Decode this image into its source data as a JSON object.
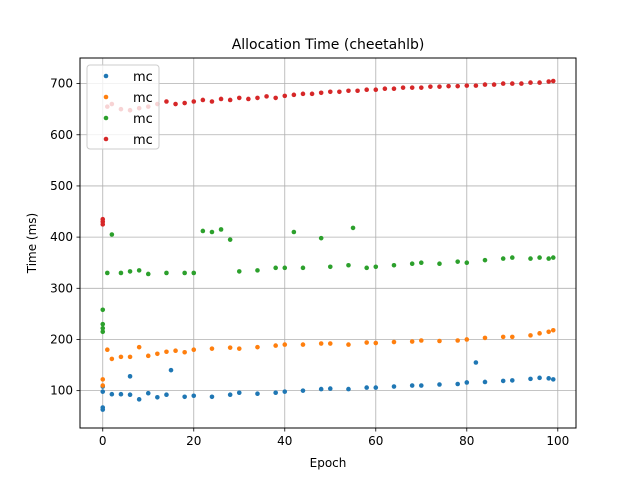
{
  "chart_data": {
    "type": "scatter",
    "title": "Allocation Time (cheetahlb)",
    "xlabel": "Epoch",
    "ylabel": "Time (ms)",
    "xlim": [
      -5,
      104
    ],
    "ylim": [
      27,
      750
    ],
    "xticks": [
      0,
      20,
      40,
      60,
      80,
      100
    ],
    "yticks": [
      100,
      200,
      300,
      400,
      500,
      600,
      700
    ],
    "grid": true,
    "legend_position": "top-left",
    "series": [
      {
        "name": "mc",
        "color": "#1f77b4",
        "points": [
          [
            0,
            63
          ],
          [
            0,
            67
          ],
          [
            0,
            98
          ],
          [
            0,
            108
          ],
          [
            2,
            93
          ],
          [
            4,
            93
          ],
          [
            6,
            92
          ],
          [
            6,
            128
          ],
          [
            8,
            83
          ],
          [
            10,
            95
          ],
          [
            12,
            87
          ],
          [
            14,
            92
          ],
          [
            15,
            140
          ],
          [
            18,
            88
          ],
          [
            20,
            90
          ],
          [
            24,
            88
          ],
          [
            28,
            92
          ],
          [
            30,
            96
          ],
          [
            34,
            94
          ],
          [
            38,
            96
          ],
          [
            40,
            98
          ],
          [
            44,
            100
          ],
          [
            48,
            103
          ],
          [
            50,
            104
          ],
          [
            54,
            103
          ],
          [
            58,
            106
          ],
          [
            60,
            106
          ],
          [
            64,
            108
          ],
          [
            68,
            110
          ],
          [
            70,
            110
          ],
          [
            74,
            112
          ],
          [
            78,
            113
          ],
          [
            80,
            116
          ],
          [
            82,
            155
          ],
          [
            84,
            117
          ],
          [
            88,
            119
          ],
          [
            90,
            120
          ],
          [
            94,
            123
          ],
          [
            96,
            125
          ],
          [
            98,
            124
          ],
          [
            99,
            122
          ]
        ]
      },
      {
        "name": "mc",
        "color": "#ff7f0e",
        "points": [
          [
            0,
            110
          ],
          [
            0,
            122
          ],
          [
            1,
            180
          ],
          [
            2,
            162
          ],
          [
            4,
            166
          ],
          [
            6,
            166
          ],
          [
            8,
            185
          ],
          [
            10,
            168
          ],
          [
            12,
            172
          ],
          [
            14,
            176
          ],
          [
            16,
            178
          ],
          [
            18,
            175
          ],
          [
            20,
            180
          ],
          [
            24,
            182
          ],
          [
            28,
            184
          ],
          [
            30,
            182
          ],
          [
            34,
            185
          ],
          [
            38,
            188
          ],
          [
            40,
            190
          ],
          [
            44,
            190
          ],
          [
            48,
            192
          ],
          [
            50,
            192
          ],
          [
            54,
            190
          ],
          [
            58,
            194
          ],
          [
            60,
            193
          ],
          [
            64,
            195
          ],
          [
            68,
            196
          ],
          [
            70,
            198
          ],
          [
            74,
            197
          ],
          [
            78,
            198
          ],
          [
            80,
            200
          ],
          [
            84,
            203
          ],
          [
            88,
            205
          ],
          [
            90,
            205
          ],
          [
            94,
            208
          ],
          [
            96,
            212
          ],
          [
            98,
            215
          ],
          [
            99,
            218
          ]
        ]
      },
      {
        "name": "mc",
        "color": "#2ca02c",
        "points": [
          [
            0,
            258
          ],
          [
            0,
            230
          ],
          [
            0,
            222
          ],
          [
            0,
            215
          ],
          [
            1,
            330
          ],
          [
            2,
            405
          ],
          [
            4,
            330
          ],
          [
            6,
            333
          ],
          [
            8,
            335
          ],
          [
            10,
            328
          ],
          [
            14,
            330
          ],
          [
            18,
            330
          ],
          [
            20,
            330
          ],
          [
            22,
            412
          ],
          [
            24,
            410
          ],
          [
            26,
            415
          ],
          [
            28,
            395
          ],
          [
            30,
            333
          ],
          [
            34,
            335
          ],
          [
            38,
            340
          ],
          [
            40,
            340
          ],
          [
            42,
            410
          ],
          [
            44,
            340
          ],
          [
            48,
            398
          ],
          [
            50,
            342
          ],
          [
            54,
            345
          ],
          [
            55,
            418
          ],
          [
            58,
            340
          ],
          [
            60,
            342
          ],
          [
            64,
            345
          ],
          [
            68,
            348
          ],
          [
            70,
            350
          ],
          [
            74,
            348
          ],
          [
            78,
            352
          ],
          [
            80,
            350
          ],
          [
            84,
            355
          ],
          [
            88,
            358
          ],
          [
            90,
            360
          ],
          [
            94,
            358
          ],
          [
            96,
            360
          ],
          [
            98,
            358
          ],
          [
            99,
            360
          ]
        ]
      },
      {
        "name": "mc",
        "color": "#d62728",
        "points": [
          [
            0,
            430
          ],
          [
            0,
            425
          ],
          [
            0,
            435
          ],
          [
            1,
            655
          ],
          [
            2,
            660
          ],
          [
            4,
            650
          ],
          [
            6,
            648
          ],
          [
            8,
            652
          ],
          [
            10,
            655
          ],
          [
            12,
            660
          ],
          [
            14,
            665
          ],
          [
            16,
            660
          ],
          [
            18,
            662
          ],
          [
            20,
            665
          ],
          [
            22,
            668
          ],
          [
            24,
            665
          ],
          [
            26,
            670
          ],
          [
            28,
            668
          ],
          [
            30,
            672
          ],
          [
            32,
            670
          ],
          [
            34,
            672
          ],
          [
            36,
            675
          ],
          [
            38,
            672
          ],
          [
            40,
            676
          ],
          [
            42,
            678
          ],
          [
            44,
            680
          ],
          [
            46,
            680
          ],
          [
            48,
            682
          ],
          [
            50,
            684
          ],
          [
            52,
            684
          ],
          [
            54,
            686
          ],
          [
            56,
            686
          ],
          [
            58,
            688
          ],
          [
            60,
            688
          ],
          [
            62,
            690
          ],
          [
            64,
            690
          ],
          [
            66,
            692
          ],
          [
            68,
            692
          ],
          [
            70,
            692
          ],
          [
            72,
            694
          ],
          [
            74,
            694
          ],
          [
            76,
            695
          ],
          [
            78,
            695
          ],
          [
            80,
            696
          ],
          [
            82,
            696
          ],
          [
            84,
            698
          ],
          [
            86,
            698
          ],
          [
            88,
            700
          ],
          [
            90,
            700
          ],
          [
            92,
            700
          ],
          [
            94,
            702
          ],
          [
            96,
            702
          ],
          [
            98,
            704
          ],
          [
            99,
            705
          ]
        ]
      }
    ]
  }
}
